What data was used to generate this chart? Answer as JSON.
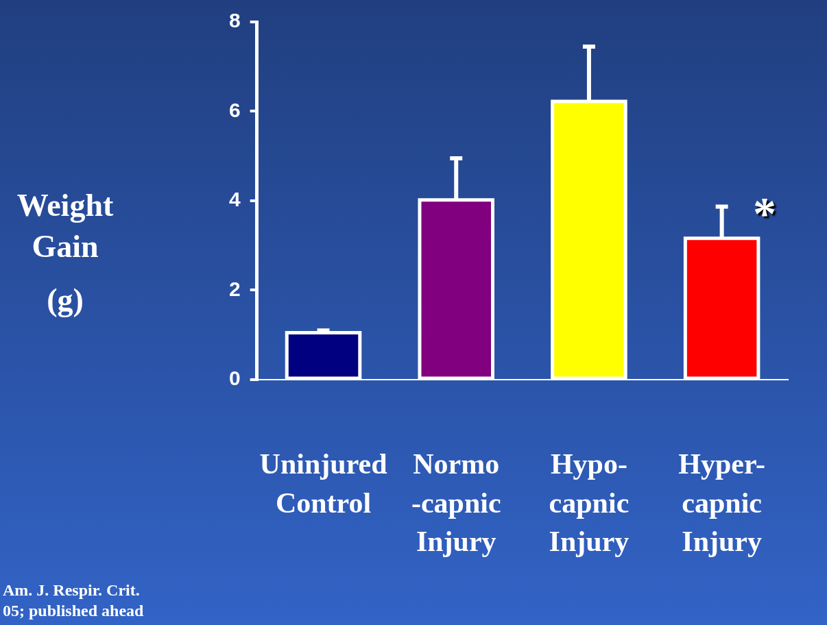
{
  "chart_data": {
    "type": "bar",
    "ylabel": "Weight Gain (g)",
    "categories": [
      "Uninjured Control",
      "Normo -capnic Injury",
      "Hypo- capnic Injury",
      "Hyper- capnic Injury"
    ],
    "values": [
      1.05,
      4.02,
      6.22,
      3.16
    ],
    "colors": [
      "#000080",
      "#800080",
      "#ffff00",
      "#ff0000"
    ],
    "errors": [
      [
        1.05,
        1.1
      ],
      [
        4.02,
        4.95
      ],
      [
        6.22,
        7.45
      ],
      [
        3.16,
        3.87
      ]
    ],
    "ylim": [
      0,
      8
    ],
    "yticks": [
      0,
      2,
      4,
      6,
      8
    ],
    "annotations": [
      "*",
      "Am. J. Respir. Crit.\n05; published ahead"
    ]
  }
}
